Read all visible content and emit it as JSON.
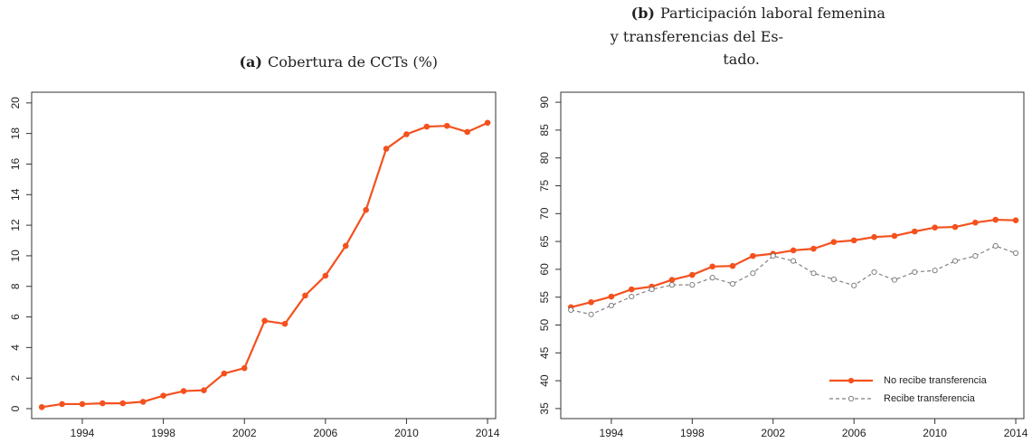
{
  "chart_data": [
    {
      "type": "line",
      "label": "(a)",
      "title": "Cobertura de CCTs (%)",
      "x": [
        1992,
        1993,
        1994,
        1995,
        1996,
        1997,
        1998,
        1999,
        2000,
        2001,
        2002,
        2003,
        2004,
        2005,
        2006,
        2007,
        2008,
        2009,
        2010,
        2011,
        2012,
        2013,
        2014
      ],
      "values": [
        0.1,
        0.3,
        0.3,
        0.35,
        0.35,
        0.45,
        0.85,
        1.15,
        1.2,
        2.3,
        2.65,
        5.75,
        5.55,
        7.4,
        8.7,
        10.65,
        13.0,
        17.0,
        17.95,
        18.45,
        18.5,
        18.1,
        18.7
      ],
      "color": "#f4511e",
      "xlim": [
        1991.5,
        2014.4
      ],
      "xticks": [
        1994,
        1998,
        2002,
        2006,
        2010,
        2014
      ],
      "ylim": [
        -0.65,
        20.7
      ],
      "yticks": [
        0,
        2,
        4,
        6,
        8,
        10,
        12,
        14,
        16,
        18,
        20
      ]
    },
    {
      "type": "line",
      "label": "(b)",
      "title_lines": [
        "Participación laboral femenina",
        "y transferencias del Es-",
        "tado."
      ],
      "x": [
        1992,
        1993,
        1994,
        1995,
        1996,
        1997,
        1998,
        1999,
        2000,
        2001,
        2002,
        2003,
        2004,
        2005,
        2006,
        2007,
        2008,
        2009,
        2010,
        2011,
        2012,
        2013,
        2014
      ],
      "series": [
        {
          "name": "No recibe transferencia",
          "color": "#f4511e",
          "dashed": false,
          "values": [
            53.2,
            54.1,
            55.1,
            56.4,
            56.9,
            58.1,
            59.0,
            60.5,
            60.6,
            62.4,
            62.8,
            63.4,
            63.7,
            64.9,
            65.2,
            65.8,
            66.0,
            66.8,
            67.5,
            67.6,
            68.4,
            68.9,
            68.8
          ]
        },
        {
          "name": "Recibe transferencia",
          "color": "#808080",
          "dashed": true,
          "values": [
            52.7,
            51.9,
            53.5,
            55.1,
            56.4,
            57.2,
            57.2,
            58.5,
            57.4,
            59.3,
            62.4,
            61.5,
            59.3,
            58.2,
            57.1,
            59.5,
            58.1,
            59.5,
            59.8,
            61.5,
            62.4,
            64.2,
            62.9
          ]
        }
      ],
      "legend": "bottom-right",
      "xlim": [
        1991.5,
        2014.4
      ],
      "xticks": [
        1994,
        1998,
        2002,
        2006,
        2010,
        2014
      ],
      "ylim": [
        33.2,
        91.8
      ],
      "yticks": [
        35,
        40,
        45,
        50,
        55,
        60,
        65,
        70,
        75,
        80,
        85,
        90
      ]
    }
  ]
}
